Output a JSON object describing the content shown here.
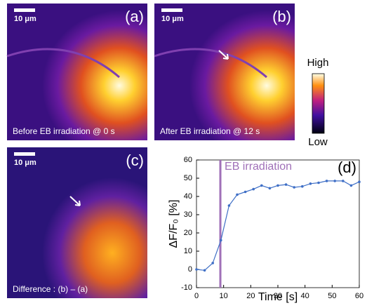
{
  "panels": [
    {
      "label": "(a)",
      "scale": "10 μm",
      "caption": "Before EB irradiation @ 0 s"
    },
    {
      "label": "(b)",
      "scale": "10 μm",
      "caption": "After EB irradiation @ 12 s"
    },
    {
      "label": "(c)",
      "scale": "10 μm",
      "caption": "Difference : (b) – (a)"
    }
  ],
  "colorbar": {
    "high": "High",
    "low": "Low"
  },
  "chart_data": {
    "type": "line",
    "label": "(d)",
    "x": [
      0,
      3,
      6,
      9,
      12,
      15,
      18,
      21,
      24,
      27,
      30,
      33,
      36,
      39,
      42,
      45,
      48,
      51,
      54,
      57,
      60
    ],
    "series": [
      {
        "color": "#3f6fc6",
        "values": [
          0,
          -0.5,
          3.5,
          16,
          35,
          41,
          42.5,
          44,
          46,
          44.5,
          46,
          46.5,
          45,
          45.5,
          47,
          47.5,
          48.5,
          48.5,
          48.5,
          46,
          48
        ]
      }
    ],
    "annotation": {
      "text": "EB irradiation",
      "x": 8.8,
      "color": "#a070b8"
    },
    "xlabel": "Time [s]",
    "ylabel": "ΔF/F₀ [%]",
    "xlim": [
      0,
      60
    ],
    "xticks": [
      0,
      10,
      20,
      30,
      40,
      50,
      60
    ],
    "ylim": [
      -10,
      60
    ],
    "yticks": [
      -10,
      0,
      10,
      20,
      30,
      40,
      50,
      60
    ]
  }
}
